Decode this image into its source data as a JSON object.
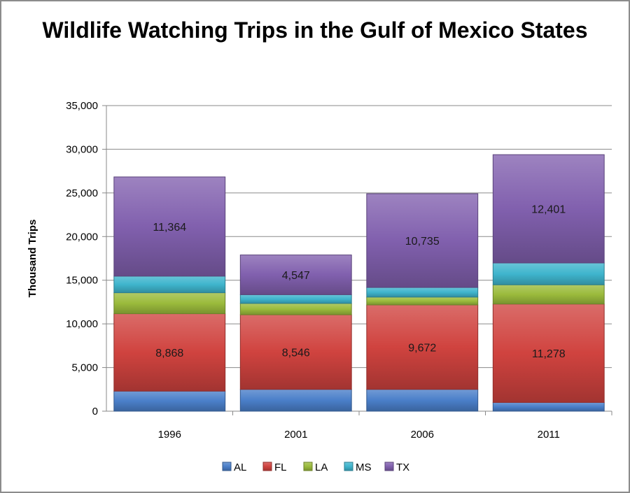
{
  "chart_data": {
    "type": "bar",
    "stacked": true,
    "title": "Wildlife Watching Trips in the Gulf of Mexico States",
    "ylabel": "Thousand Trips",
    "xlabel": "",
    "ylim": [
      0,
      35000
    ],
    "yticks": [
      "0",
      "5,000",
      "10,000",
      "15,000",
      "20,000",
      "25,000",
      "30,000",
      "35,000"
    ],
    "ytick_values": [
      0,
      5000,
      10000,
      15000,
      20000,
      25000,
      30000,
      35000
    ],
    "categories": [
      "1996",
      "2001",
      "2006",
      "2011"
    ],
    "grid": true,
    "legend_position": "bottom",
    "series": [
      {
        "name": "AL",
        "color": "#4a7fc9",
        "values": [
          2300,
          2500,
          2500,
          1000
        ],
        "labels": [
          "",
          "",
          "",
          ""
        ]
      },
      {
        "name": "FL",
        "color": "#d0433f",
        "values": [
          8868,
          8546,
          9672,
          11278
        ],
        "labels": [
          "8,868",
          "8,546",
          "9,672",
          "11,278"
        ]
      },
      {
        "name": "LA",
        "color": "#9bbb3c",
        "values": [
          2400,
          1300,
          900,
          2200
        ],
        "labels": [
          "",
          "",
          "",
          ""
        ]
      },
      {
        "name": "MS",
        "color": "#3fb5cd",
        "values": [
          1900,
          1000,
          1100,
          2500
        ],
        "labels": [
          "",
          "",
          "",
          ""
        ]
      },
      {
        "name": "TX",
        "color": "#8160ae",
        "values": [
          11364,
          4547,
          10735,
          12401
        ],
        "labels": [
          "11,364",
          "4,547",
          "10,735",
          "12,401"
        ]
      }
    ]
  }
}
